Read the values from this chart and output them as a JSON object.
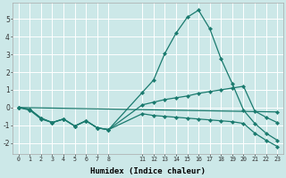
{
  "xlabel": "Humidex (Indice chaleur)",
  "bg_color": "#cce8e8",
  "grid_color": "#ffffff",
  "line_color": "#1a7a6e",
  "ylim": [
    -2.6,
    5.9
  ],
  "xlim": [
    -0.5,
    23.5
  ],
  "x_ticks": [
    0,
    1,
    2,
    3,
    4,
    5,
    6,
    7,
    8,
    11,
    12,
    13,
    14,
    15,
    16,
    17,
    18,
    19,
    20,
    21,
    22,
    23
  ],
  "line1_x": [
    0,
    1,
    2,
    3,
    4,
    5,
    6,
    7,
    8,
    11,
    12,
    13,
    14,
    15,
    16,
    17,
    18,
    19,
    20,
    21,
    22,
    23
  ],
  "line1_y": [
    0.0,
    -0.15,
    -0.65,
    -0.85,
    -0.65,
    -1.05,
    -0.75,
    -1.15,
    -1.25,
    0.85,
    1.55,
    3.05,
    4.2,
    5.1,
    5.5,
    4.45,
    2.75,
    1.35,
    -0.15,
    -0.9,
    -1.45,
    -1.85
  ],
  "line2_x": [
    0,
    1,
    2,
    3,
    4,
    5,
    6,
    7,
    8,
    11,
    12,
    13,
    14,
    15,
    16,
    17,
    18,
    19,
    20,
    21,
    22,
    23
  ],
  "line2_y": [
    0.0,
    -0.1,
    -0.6,
    -0.85,
    -0.65,
    -1.05,
    -0.75,
    -1.15,
    -1.25,
    0.15,
    0.3,
    0.45,
    0.55,
    0.65,
    0.8,
    0.9,
    1.0,
    1.1,
    1.2,
    -0.2,
    -0.55,
    -0.85
  ],
  "line3_x": [
    0,
    1,
    2,
    3,
    4,
    5,
    6,
    7,
    8,
    11,
    12,
    13,
    14,
    15,
    16,
    17,
    18,
    19,
    20,
    21,
    22,
    23
  ],
  "line3_y": [
    0.0,
    -0.1,
    -0.6,
    -0.85,
    -0.65,
    -1.05,
    -0.75,
    -1.15,
    -1.25,
    -0.35,
    -0.45,
    -0.5,
    -0.55,
    -0.6,
    -0.65,
    -0.7,
    -0.75,
    -0.8,
    -0.9,
    -1.45,
    -1.85,
    -2.2
  ],
  "line4_x": [
    0,
    23
  ],
  "line4_y": [
    0.0,
    -0.25
  ]
}
